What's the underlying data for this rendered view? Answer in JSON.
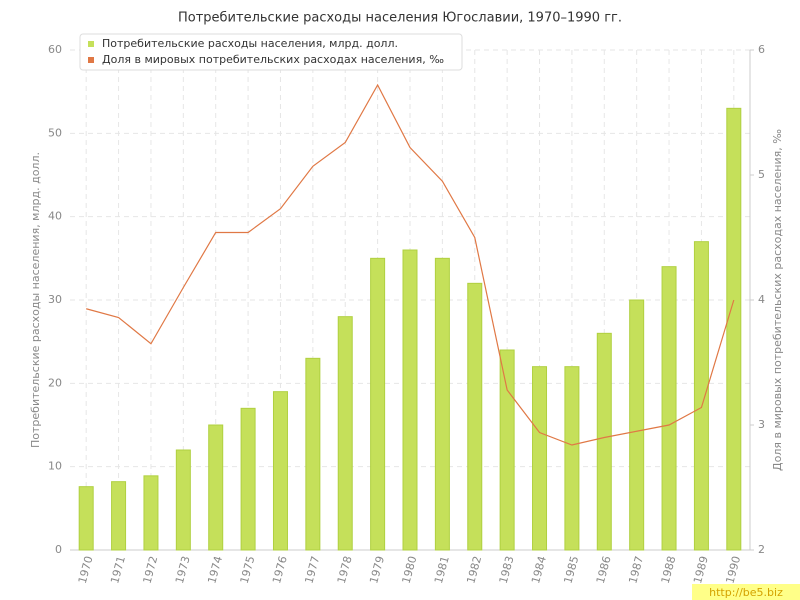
{
  "chart_data": {
    "type": "bar-line",
    "title": "Потребительские расходы населения Югославии, 1970–1990 гг.",
    "y_label": "Потребительские расходы населения, млрд. долл.",
    "y2_label": "Доля в мировых потребительских расходах населения, ‰",
    "categories": [
      "1970",
      "1971",
      "1972",
      "1973",
      "1974",
      "1975",
      "1976",
      "1977",
      "1978",
      "1979",
      "1980",
      "1981",
      "1982",
      "1983",
      "1984",
      "1985",
      "1986",
      "1987",
      "1988",
      "1989",
      "1990"
    ],
    "series": [
      {
        "name": "Потребительские расходы населения, млрд. долл.",
        "type": "bar",
        "color": "#c5e05a",
        "values": [
          7.6,
          8.2,
          8.9,
          12,
          15,
          17,
          19,
          23,
          28,
          35,
          36,
          35,
          32,
          24,
          22,
          22,
          26,
          30,
          34,
          37,
          53
        ]
      },
      {
        "name": "Доля в мировых потребительских расходах населения, ‰",
        "type": "line",
        "axis": "y2",
        "color": "#e07845",
        "values": [
          3.93,
          3.86,
          3.65,
          4.1,
          4.54,
          4.54,
          4.73,
          5.07,
          5.26,
          5.72,
          5.22,
          4.95,
          4.5,
          3.28,
          2.94,
          2.84,
          2.9,
          2.95,
          3.0,
          3.14,
          4.0
        ]
      }
    ],
    "ylim": [
      0,
      60
    ],
    "yticks": [
      0,
      10,
      20,
      30,
      40,
      50,
      60
    ],
    "y2lim": [
      2,
      6
    ],
    "y2ticks": [
      2,
      3,
      4,
      5,
      6
    ],
    "grid": true,
    "legend": "top-left",
    "watermark": "http://be5.biz"
  }
}
